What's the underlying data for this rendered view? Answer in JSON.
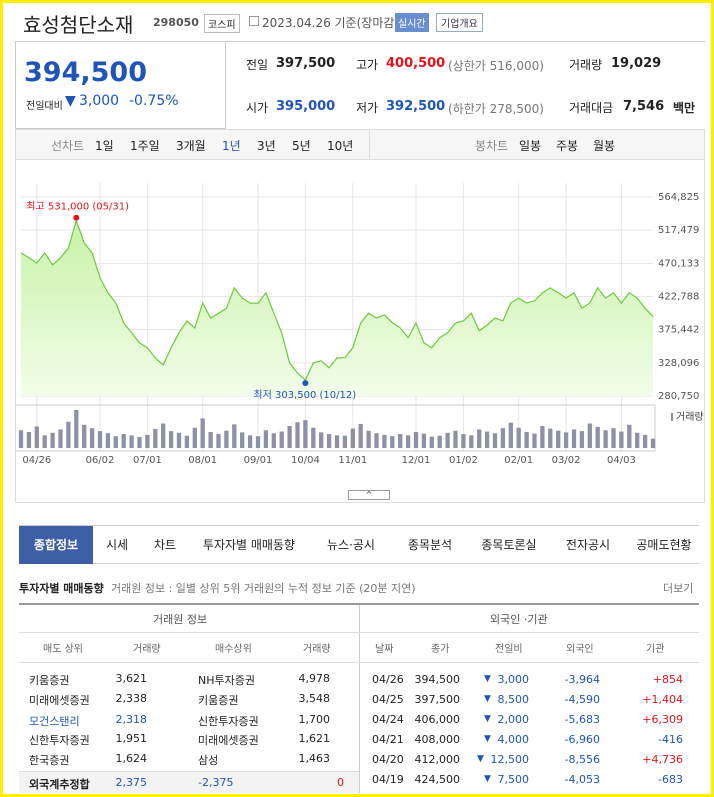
{
  "header": {
    "name": "효성첨단소재",
    "code": "298050",
    "market": "코스피",
    "date": "2023.04.26 기준(장마감)",
    "realtime": "실시간",
    "company": "기업개요"
  },
  "price": {
    "current": "394,500",
    "change_label": "전일대비",
    "change": "3,000",
    "change_pct": "-0.75%"
  },
  "quote": [
    [
      {
        "label": "전일",
        "value": "397,500"
      },
      {
        "label": "고가",
        "value": "400,500",
        "sub": "(상한가 516,000)"
      },
      {
        "label": "거래량",
        "value": "19,029"
      }
    ],
    [
      {
        "label": "시가",
        "value": "395,000"
      },
      {
        "label": "저가",
        "value": "392,500",
        "sub": "(하한가 278,500)"
      },
      {
        "label": "거래대금",
        "value": "7,546",
        "unit": "백만"
      }
    ]
  ],
  "periods": {
    "line_label": "선차트",
    "line": [
      "1일",
      "1주일",
      "3개월",
      "1년",
      "3년",
      "5년",
      "10년"
    ],
    "active": "1년",
    "candle_label": "봉차트",
    "candle": [
      "일봉",
      "주봉",
      "월봉"
    ]
  },
  "chart_data": {
    "type": "line",
    "color": "#6cc93c",
    "categories": [
      null,
      null,
      "04/26",
      null,
      null,
      null,
      null,
      null,
      null,
      null,
      "06/02",
      null,
      null,
      null,
      null,
      null,
      "07/01",
      null,
      null,
      null,
      null,
      null,
      null,
      "08/01",
      null,
      null,
      null,
      null,
      null,
      null,
      "09/01",
      null,
      null,
      null,
      null,
      null,
      "10/04",
      null,
      null,
      null,
      null,
      null,
      "11/01",
      null,
      null,
      null,
      null,
      null,
      null,
      null,
      "12/01",
      null,
      null,
      null,
      null,
      null,
      "01/02",
      null,
      null,
      null,
      null,
      null,
      null,
      "02/01",
      null,
      null,
      null,
      null,
      null,
      "03/02",
      null,
      null,
      null,
      null,
      null,
      null,
      "04/03",
      null,
      null,
      null,
      null
    ],
    "values": [
      485000,
      478000,
      470500,
      485000,
      468000,
      478000,
      492000,
      531000,
      499000,
      485000,
      449500,
      428000,
      413500,
      385000,
      371000,
      356500,
      349500,
      335000,
      325000,
      349500,
      371000,
      388000,
      378000,
      413500,
      392000,
      399000,
      406000,
      435000,
      420500,
      413500,
      413000,
      428000,
      399000,
      371000,
      328000,
      313500,
      303500,
      328000,
      331000,
      321000,
      335000,
      335500,
      349500,
      385000,
      399000,
      392000,
      396500,
      385500,
      378000,
      364000,
      385000,
      356500,
      349500,
      364000,
      371000,
      385000,
      388000,
      399000,
      374000,
      382000,
      392000,
      388000,
      413500,
      420500,
      413500,
      416500,
      428000,
      435000,
      428000,
      420500,
      428000,
      406000,
      413500,
      435000,
      420500,
      428000,
      413500,
      428000,
      420500,
      406000,
      394500
    ],
    "volume_label": "거래량",
    "volume_color": "#8d91a6",
    "volume": [
      42000,
      38000,
      51000,
      30000,
      36000,
      44000,
      62000,
      90000,
      55000,
      47000,
      40000,
      35000,
      28000,
      33000,
      30000,
      26000,
      31000,
      45000,
      58000,
      40000,
      36000,
      29000,
      48000,
      70000,
      38000,
      33000,
      41000,
      56000,
      37000,
      30000,
      28000,
      42000,
      35000,
      39000,
      52000,
      61000,
      66000,
      48000,
      37000,
      33000,
      30000,
      29000,
      46000,
      57000,
      41000,
      35000,
      31000,
      28000,
      33000,
      30000,
      38000,
      34000,
      27000,
      29000,
      36000,
      41000,
      33000,
      30000,
      44000,
      39000,
      35000,
      47000,
      60000,
      48000,
      38000,
      34000,
      52000,
      46000,
      41000,
      37000,
      44000,
      40000,
      58000,
      50000,
      42000,
      47000,
      39000,
      55000,
      36000,
      31000,
      22000
    ],
    "ylim": [
      280750,
      564825
    ],
    "yticks": [
      {
        "value": 280750,
        "label": "280,750"
      },
      {
        "value": 328096,
        "label": "328,096"
      },
      {
        "value": 375442,
        "label": "375,442"
      },
      {
        "value": 422788,
        "label": "422,788"
      },
      {
        "value": 470133,
        "label": "470,133"
      },
      {
        "value": 517479,
        "label": "517,479"
      },
      {
        "value": 564825,
        "label": "564,825"
      }
    ],
    "annotations": {
      "high": "최고 531,000 (05/31)",
      "low": "최저 303,500 (10/12)"
    },
    "grid": true
  },
  "tabs": [
    "종합정보",
    "시세",
    "차트",
    "투자자별 매매동향",
    "뉴스·공시",
    "종목분석",
    "종목토론실",
    "전자공시",
    "공매도현황"
  ],
  "section": {
    "title": "투자자별 매매동향",
    "desc": "거래원 정보 : 일별 상위 5위 거래원의 누적 정보 기준 (20분 지연)",
    "more": "더보기"
  },
  "brokers": {
    "title": "거래원 정보",
    "columns": [
      "매도 상위",
      "거래량",
      "매수상위",
      "거래량"
    ],
    "rows": [
      [
        "키움증권",
        "3,621",
        "NH투자증권",
        "4,978"
      ],
      [
        "미래에셋증권",
        "2,338",
        "키움증권",
        "3,548"
      ],
      [
        "모건스탠리",
        "2,318",
        "신한투자증권",
        "1,700"
      ],
      [
        "신한투자증권",
        "1,951",
        "미래에셋증권",
        "1,621"
      ],
      [
        "한국증권",
        "1,624",
        "삼성",
        "1,463"
      ]
    ],
    "highlight_row": 2,
    "highlight_color": "#1f55b8",
    "total": [
      "외국계추정합",
      "2,375",
      "-2,375",
      "0"
    ]
  },
  "foreign": {
    "title": "외국인 ·기관",
    "columns": [
      "날짜",
      "종가",
      "전일비",
      "외국인",
      "기관"
    ],
    "rows": [
      [
        "04/26",
        "394,500",
        "3,000",
        "-3,964",
        "+854"
      ],
      [
        "04/25",
        "397,500",
        "8,500",
        "-4,590",
        "+1,404"
      ],
      [
        "04/24",
        "406,000",
        "2,000",
        "-5,683",
        "+6,309"
      ],
      [
        "04/21",
        "408,000",
        "4,000",
        "-6,960",
        "-416"
      ],
      [
        "04/20",
        "412,000",
        "12,500",
        "-8,556",
        "+4,736"
      ],
      [
        "04/19",
        "424,500",
        "7,500",
        "-4,053",
        "-683"
      ]
    ]
  }
}
